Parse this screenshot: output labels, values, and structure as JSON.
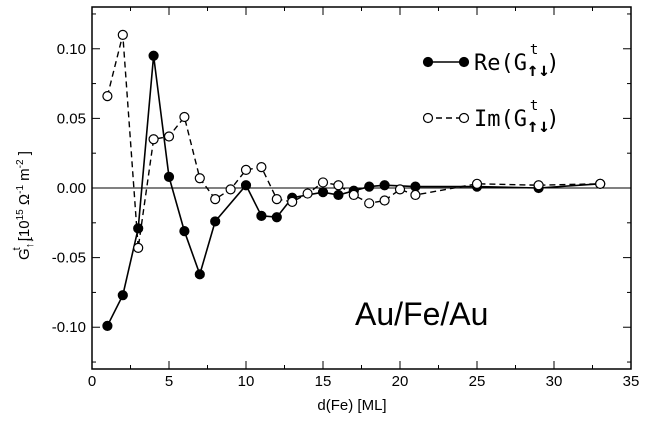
{
  "chart_data": {
    "type": "line",
    "title": "",
    "xlabel": "d(Fe) [ML]",
    "ylabel": {
      "symbol": "G",
      "superscript": "t",
      "subscript": "↑↓",
      "unit_prefix": "[10",
      "unit_exp1": "15",
      "unit_ohm": " Ω",
      "unit_exp2": "-1",
      "unit_m": " m",
      "unit_exp3": "-2",
      "unit_suffix": " ]"
    },
    "xlim": [
      0,
      35
    ],
    "ylim": [
      -0.13,
      0.13
    ],
    "xticks": [
      0,
      5,
      10,
      15,
      20,
      25,
      30,
      35
    ],
    "xtick_labels": [
      "0",
      "5",
      "10",
      "15",
      "20",
      "25",
      "30",
      "35"
    ],
    "yticks": [
      -0.1,
      -0.05,
      0.0,
      0.05,
      0.1
    ],
    "ytick_labels": [
      "-0.10",
      "-0.05",
      "0.00",
      "0.05",
      "0.10"
    ],
    "zero_line": true,
    "grid": false,
    "legend_position": "top-right",
    "annotation": "Au/Fe/Au",
    "series": [
      {
        "name": "Re(G↑↓t)",
        "name_prefix": "Re(G",
        "name_sup": "t",
        "name_sub": "↑↓",
        "name_suffix": ")",
        "line_style": "solid",
        "marker": "filled-circle",
        "color": "#000000",
        "x": [
          1,
          2,
          3,
          4,
          5,
          6,
          7,
          8,
          10,
          11,
          12,
          13,
          15,
          16,
          17,
          18,
          19,
          21,
          25,
          29,
          33
        ],
        "y": [
          -0.099,
          -0.077,
          -0.029,
          0.095,
          0.008,
          -0.031,
          -0.062,
          -0.024,
          0.002,
          -0.02,
          -0.021,
          -0.007,
          -0.003,
          -0.005,
          -0.002,
          0.001,
          0.002,
          0.001,
          0.001,
          0.0,
          0.003
        ]
      },
      {
        "name": "Im(G↑↓t)",
        "name_prefix": "Im(G",
        "name_sup": "t",
        "name_sub": "↑↓",
        "name_suffix": ")",
        "line_style": "dashed",
        "marker": "open-circle",
        "color": "#000000",
        "x": [
          1,
          2,
          3,
          4,
          5,
          6,
          7,
          8,
          9,
          10,
          11,
          12,
          13,
          14,
          15,
          16,
          17,
          18,
          19,
          20,
          21,
          25,
          29,
          33
        ],
        "y": [
          0.066,
          0.11,
          -0.043,
          0.035,
          0.037,
          0.051,
          0.007,
          -0.008,
          -0.001,
          0.013,
          0.015,
          -0.008,
          -0.01,
          -0.004,
          0.004,
          0.002,
          -0.005,
          -0.011,
          -0.009,
          -0.001,
          -0.005,
          0.003,
          0.002,
          0.003
        ]
      }
    ]
  }
}
